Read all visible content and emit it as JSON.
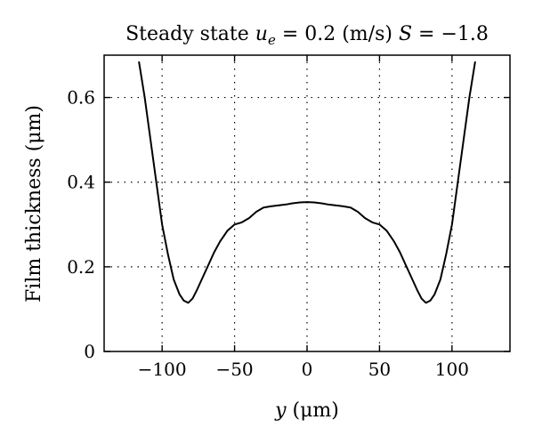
{
  "chart_data": {
    "type": "line",
    "title": "Steady state u_e = 0.2 (m/s) S = −1.8",
    "title_parts": {
      "pre": "Steady state ",
      "u": "u",
      "sub": "e",
      "post": " = 0.2 (m/s) ",
      "s": "S",
      "tail": " = −1.8"
    },
    "xlabel_parts": {
      "var": "y",
      "unit": " (μm)"
    },
    "ylabel": "Film thickness (μm)",
    "xlim": [
      -140,
      140
    ],
    "ylim": [
      0,
      0.7
    ],
    "grid": true,
    "x_ticks": [
      -100,
      -50,
      0,
      50,
      100
    ],
    "x_tick_labels": [
      "−100",
      "−50",
      "0",
      "50",
      "100"
    ],
    "y_ticks": [
      0,
      0.2,
      0.4,
      0.6
    ],
    "y_tick_labels": [
      "0",
      "0.2",
      "0.4",
      "0.6"
    ],
    "series": [
      {
        "x": [
          -116,
          -112,
          -108,
          -104,
          -100,
          -96,
          -92,
          -88,
          -85,
          -82,
          -79,
          -76,
          -72,
          -68,
          -64,
          -60,
          -55,
          -50,
          -45,
          -40,
          -35,
          -30,
          -25,
          -20,
          -15,
          -10,
          -5,
          0,
          5,
          10,
          15,
          20,
          25,
          30,
          35,
          40,
          45,
          50,
          55,
          60,
          64,
          68,
          72,
          76,
          79,
          82,
          85,
          88,
          92,
          96,
          100,
          104,
          108,
          112,
          116
        ],
        "y": [
          0.685,
          0.6,
          0.5,
          0.4,
          0.3,
          0.23,
          0.17,
          0.135,
          0.12,
          0.115,
          0.125,
          0.145,
          0.175,
          0.205,
          0.235,
          0.26,
          0.285,
          0.3,
          0.305,
          0.315,
          0.33,
          0.34,
          0.343,
          0.345,
          0.347,
          0.35,
          0.352,
          0.353,
          0.352,
          0.35,
          0.347,
          0.345,
          0.343,
          0.34,
          0.33,
          0.315,
          0.305,
          0.3,
          0.285,
          0.26,
          0.235,
          0.205,
          0.175,
          0.145,
          0.125,
          0.115,
          0.12,
          0.135,
          0.17,
          0.23,
          0.3,
          0.4,
          0.5,
          0.6,
          0.685
        ]
      }
    ]
  }
}
